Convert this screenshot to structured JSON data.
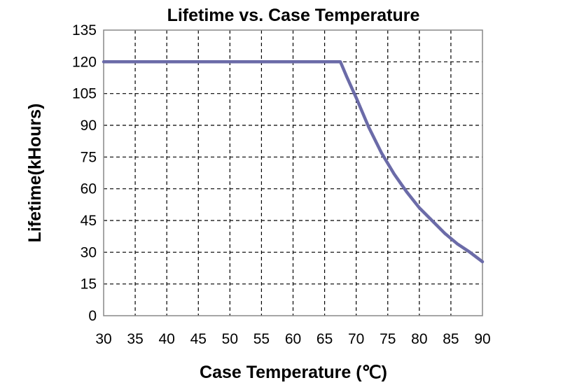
{
  "chart_data": {
    "type": "line",
    "title": "Lifetime vs. Case Temperature",
    "xlabel": "Case Temperature (℃)",
    "ylabel": "Lifetime(kHours)",
    "xlim": [
      30,
      90
    ],
    "ylim": [
      0,
      135
    ],
    "xticks": [
      "30",
      "35",
      "40",
      "45",
      "50",
      "55",
      "60",
      "65",
      "70",
      "75",
      "80",
      "85",
      "90"
    ],
    "yticks": [
      "0",
      "15",
      "30",
      "45",
      "60",
      "75",
      "90",
      "105",
      "120",
      "135"
    ],
    "grid": {
      "x": true,
      "y": true,
      "style": "dashed"
    },
    "series": [
      {
        "color": "#6b6ba8",
        "x": [
          30,
          67.5,
          68.5,
          70,
          72,
          74,
          76,
          78,
          80,
          82,
          84,
          86,
          88,
          90
        ],
        "y": [
          120,
          120,
          113,
          103,
          89,
          77,
          67,
          58.5,
          51,
          45,
          39,
          34,
          30,
          25.5
        ]
      }
    ]
  }
}
